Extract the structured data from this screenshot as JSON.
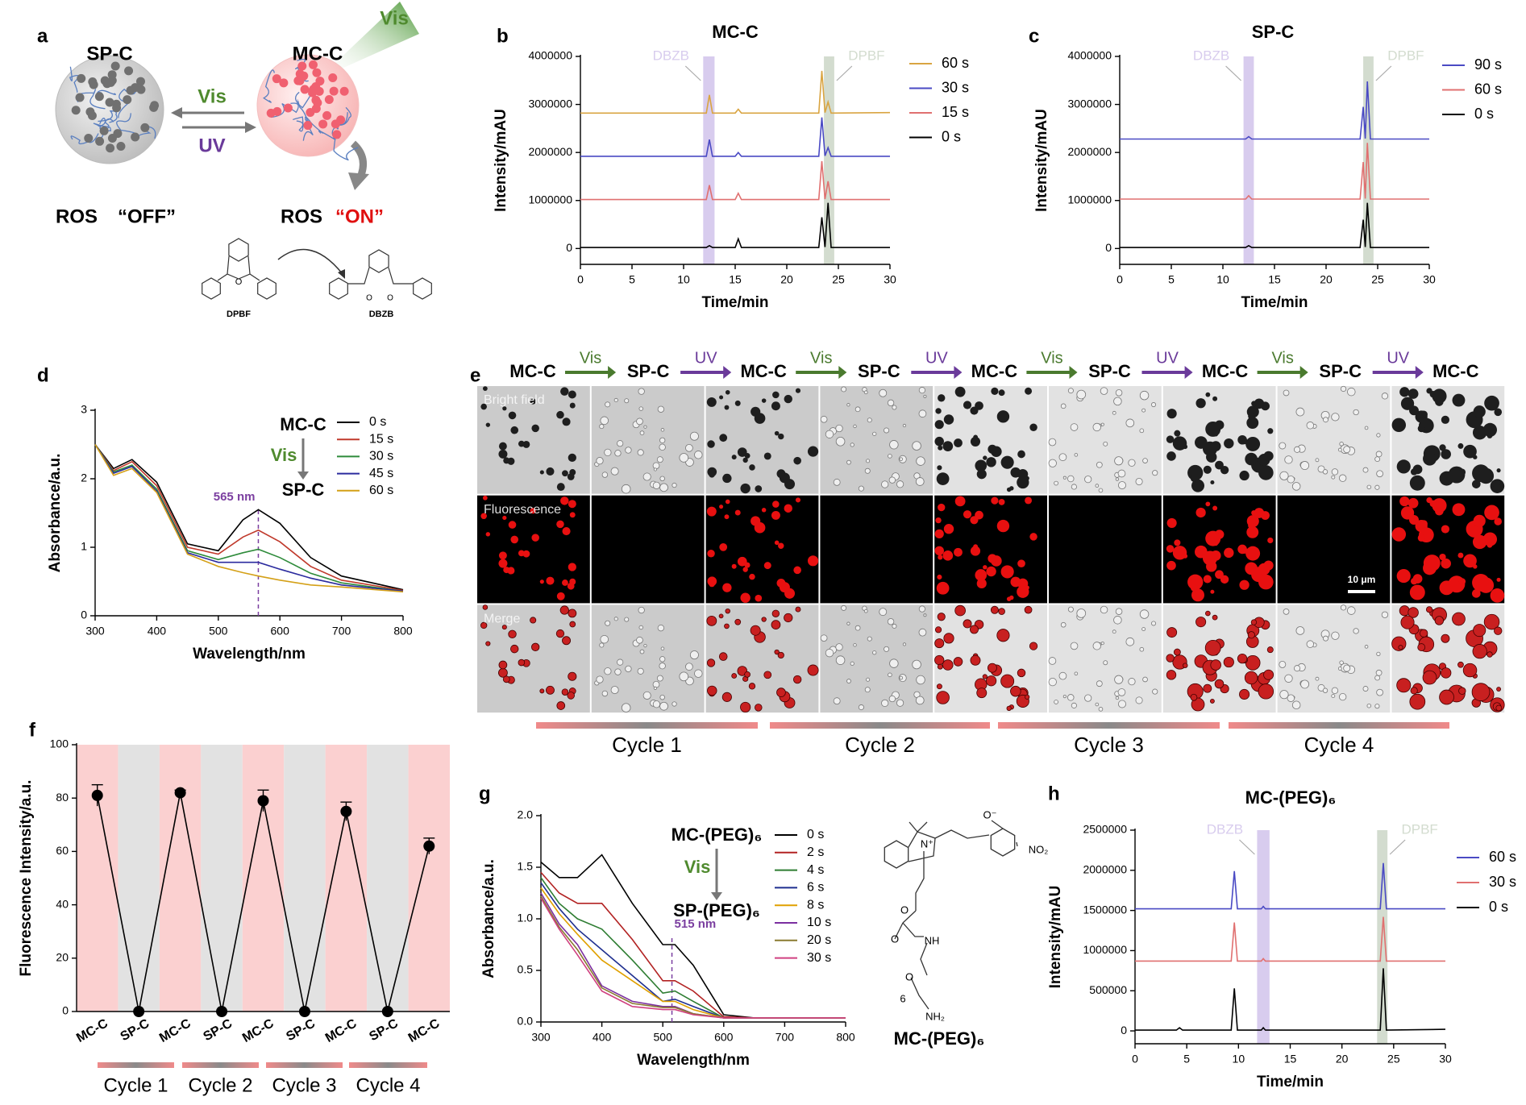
{
  "panels": [
    "a",
    "b",
    "c",
    "d",
    "e",
    "f",
    "g",
    "h"
  ],
  "scheme": {
    "left": "SP-C",
    "right": "MC-C",
    "light": "Vis",
    "forward": "Vis",
    "backward": "UV",
    "left_state": [
      "ROS",
      "“OFF”"
    ],
    "right_state": [
      "ROS",
      "“ON”"
    ],
    "reactant": "DPBF",
    "product": "DBZB",
    "atoms": [
      "O",
      "O",
      "O"
    ]
  },
  "chart_data": [
    {
      "type": "line",
      "title": "MC-C",
      "x_label": "Time/min",
      "y_label": "Intensity/mAU",
      "x": [
        0,
        12.2,
        12.5,
        12.8,
        15,
        15.3,
        15.6,
        23.1,
        23.4,
        23.7,
        24,
        24.3,
        30
      ],
      "series": [
        {
          "name": "60 s",
          "color": "#d9a441",
          "values": [
            2820000,
            2820000,
            3200000,
            2820000,
            2820000,
            2900000,
            2820000,
            2820000,
            3700000,
            2830000,
            3050000,
            2820000,
            2830000
          ]
        },
        {
          "name": "30 s",
          "color": "#4a4ac4",
          "values": [
            1920000,
            1920000,
            2270000,
            1920000,
            1920000,
            2000000,
            1920000,
            1920000,
            2730000,
            1930000,
            2100000,
            1920000,
            1920000
          ]
        },
        {
          "name": "15 s",
          "color": "#e07070",
          "values": [
            1020000,
            1020000,
            1320000,
            1020000,
            1020000,
            1150000,
            1020000,
            1020000,
            1820000,
            1030000,
            1400000,
            1020000,
            1020000
          ]
        },
        {
          "name": "0 s",
          "color": "#000000",
          "values": [
            20000,
            20000,
            60000,
            20000,
            20000,
            200000,
            20000,
            20000,
            650000,
            30000,
            950000,
            20000,
            20000
          ]
        }
      ],
      "bands": [
        {
          "label": "DBZB",
          "from": 11.9,
          "to": 13.0,
          "color": "#d8ccee"
        },
        {
          "label": "DPBF",
          "from": 23.6,
          "to": 24.6,
          "color": "#d3dccf"
        }
      ],
      "xlim": [
        0,
        30
      ],
      "xticks": [
        0,
        5,
        10,
        15,
        20,
        25,
        30
      ],
      "ylim": [
        -330000,
        4000000
      ],
      "yticks": [
        0,
        1000000,
        2000000,
        3000000,
        4000000
      ]
    },
    {
      "type": "line",
      "title": "SP-C",
      "x_label": "Time/min",
      "y_label": "Intensity/mAU",
      "x": [
        0,
        12.2,
        12.5,
        12.8,
        23.3,
        23.6,
        23.8,
        24.0,
        24.3,
        30
      ],
      "series": [
        {
          "name": "90 s",
          "color": "#4a4ac4",
          "values": [
            2280000,
            2280000,
            2330000,
            2280000,
            2280000,
            2950000,
            2290000,
            3480000,
            2280000,
            2280000
          ]
        },
        {
          "name": "60 s",
          "color": "#e07070",
          "values": [
            1030000,
            1030000,
            1100000,
            1030000,
            1030000,
            1800000,
            1040000,
            2200000,
            1030000,
            1030000
          ]
        },
        {
          "name": "0 s",
          "color": "#000000",
          "values": [
            20000,
            20000,
            60000,
            20000,
            20000,
            600000,
            30000,
            950000,
            20000,
            20000
          ]
        }
      ],
      "bands": [
        {
          "label": "DBZB",
          "from": 12.0,
          "to": 13.0,
          "color": "#d8ccee"
        },
        {
          "label": "DPBF",
          "from": 23.6,
          "to": 24.6,
          "color": "#d3dccf"
        }
      ],
      "xlim": [
        0,
        30
      ],
      "xticks": [
        0,
        5,
        10,
        15,
        20,
        25,
        30
      ],
      "ylim": [
        -330000,
        4000000
      ],
      "yticks": [
        0,
        1000000,
        2000000,
        3000000,
        4000000
      ]
    },
    {
      "type": "line",
      "x_label": "Wavelength/nm",
      "y_label": "Absorbance/a.u.",
      "x": [
        300,
        330,
        360,
        400,
        450,
        500,
        540,
        565,
        600,
        650,
        700,
        800
      ],
      "series": [
        {
          "name": "0 s",
          "color": "#000000",
          "values": [
            2.5,
            2.15,
            2.28,
            1.95,
            1.05,
            0.95,
            1.4,
            1.55,
            1.35,
            0.85,
            0.58,
            0.38
          ]
        },
        {
          "name": "15 s",
          "color": "#c0392b",
          "values": [
            2.5,
            2.12,
            2.25,
            1.9,
            1.0,
            0.9,
            1.15,
            1.25,
            1.08,
            0.72,
            0.52,
            0.37
          ]
        },
        {
          "name": "30 s",
          "color": "#2e8b3a",
          "values": [
            2.5,
            2.1,
            2.2,
            1.85,
            0.95,
            0.82,
            0.92,
            0.97,
            0.85,
            0.62,
            0.48,
            0.36
          ]
        },
        {
          "name": "45 s",
          "color": "#2b2b9e",
          "values": [
            2.5,
            2.08,
            2.18,
            1.82,
            0.92,
            0.78,
            0.78,
            0.78,
            0.68,
            0.55,
            0.45,
            0.36
          ]
        },
        {
          "name": "60 s",
          "color": "#d4a017",
          "values": [
            2.5,
            2.05,
            2.15,
            1.8,
            0.9,
            0.72,
            0.63,
            0.58,
            0.52,
            0.45,
            0.42,
            0.35
          ]
        }
      ],
      "marker": {
        "x": 565,
        "label": "565 nm",
        "color": "#7b3fa0"
      },
      "inset": {
        "top": "MC-C",
        "arrow": "Vis",
        "bottom": "SP-C"
      },
      "xlim": [
        300,
        800
      ],
      "xticks": [
        300,
        400,
        500,
        600,
        700,
        800
      ],
      "ylim": [
        0,
        3
      ],
      "yticks": [
        0,
        1,
        2,
        3
      ]
    },
    {
      "type": "line",
      "y_label": "Fluorescence Intensity/a.u.",
      "categories": [
        "MC-C",
        "SP-C",
        "MC-C",
        "SP-C",
        "MC-C",
        "SP-C",
        "MC-C",
        "SP-C",
        "MC-C"
      ],
      "values": [
        81,
        0,
        82,
        0,
        79,
        0,
        75,
        0,
        62
      ],
      "errors": [
        4,
        0,
        1,
        0,
        4,
        0,
        3.5,
        0,
        3
      ],
      "color": "#000000",
      "background": [
        "#fbd0d0",
        "#e2e2e2"
      ],
      "cycles": [
        "Cycle 1",
        "Cycle 2",
        "Cycle 3",
        "Cycle 4"
      ],
      "ylim": [
        0,
        100
      ],
      "yticks": [
        0,
        20,
        40,
        60,
        80,
        100
      ]
    },
    {
      "type": "line",
      "x_label": "Wavelength/nm",
      "y_label": "Absorbance/a.u.",
      "x": [
        300,
        330,
        360,
        400,
        450,
        500,
        520,
        550,
        600,
        650,
        800
      ],
      "series": [
        {
          "name": "0 s",
          "color": "#000000",
          "values": [
            1.55,
            1.4,
            1.4,
            1.62,
            1.15,
            0.75,
            0.75,
            0.55,
            0.07,
            0.04,
            0.04
          ]
        },
        {
          "name": "2 s",
          "color": "#b22222",
          "values": [
            1.45,
            1.25,
            1.15,
            1.15,
            0.8,
            0.4,
            0.4,
            0.3,
            0.05,
            0.04,
            0.04
          ]
        },
        {
          "name": "4 s",
          "color": "#2e7d32",
          "values": [
            1.4,
            1.15,
            1.0,
            0.9,
            0.6,
            0.28,
            0.3,
            0.2,
            0.04,
            0.04,
            0.04
          ]
        },
        {
          "name": "6 s",
          "color": "#1f2f8f",
          "values": [
            1.35,
            1.1,
            0.9,
            0.7,
            0.45,
            0.2,
            0.22,
            0.15,
            0.04,
            0.04,
            0.04
          ]
        },
        {
          "name": "8 s",
          "color": "#e0a000",
          "values": [
            1.3,
            1.05,
            0.85,
            0.6,
            0.4,
            0.2,
            0.2,
            0.12,
            0.04,
            0.04,
            0.04
          ]
        },
        {
          "name": "10 s",
          "color": "#7b2fa0",
          "values": [
            1.25,
            0.95,
            0.75,
            0.35,
            0.2,
            0.15,
            0.15,
            0.08,
            0.04,
            0.04,
            0.04
          ]
        },
        {
          "name": "20 s",
          "color": "#8a7a30",
          "values": [
            1.22,
            0.92,
            0.7,
            0.33,
            0.18,
            0.14,
            0.14,
            0.08,
            0.04,
            0.04,
            0.04
          ]
        },
        {
          "name": "30 s",
          "color": "#d04080",
          "values": [
            1.2,
            0.9,
            0.65,
            0.3,
            0.15,
            0.12,
            0.12,
            0.07,
            0.04,
            0.04,
            0.04
          ]
        }
      ],
      "marker": {
        "x": 515,
        "label": "515 nm",
        "color": "#7b3fa0"
      },
      "inset": {
        "top": "MC-(PEG)₆",
        "arrow": "Vis",
        "bottom": "SP-(PEG)₆"
      },
      "xlim": [
        300,
        800
      ],
      "xticks": [
        300,
        400,
        500,
        600,
        700,
        800
      ],
      "ylim": [
        0,
        2
      ],
      "yticks": [
        {
          "value": 0,
          "label": "0.0"
        },
        0.5,
        {
          "value": 1,
          "label": "1.0"
        },
        1.5,
        {
          "value": 2,
          "label": "2.0"
        }
      ]
    },
    {
      "type": "line",
      "title": "MC-(PEG)₆",
      "x_label": "Time/min",
      "y_label": "Intensity/mAU",
      "x": [
        0,
        4.0,
        4.3,
        4.6,
        9.3,
        9.6,
        9.9,
        12.2,
        12.4,
        12.6,
        23.7,
        24.0,
        24.3,
        30
      ],
      "series": [
        {
          "name": "60 s",
          "color": "#4a4ac4",
          "values": [
            1520000,
            1520000,
            1520000,
            1520000,
            1520000,
            1990000,
            1520000,
            1520000,
            1550000,
            1520000,
            1520000,
            2090000,
            1520000,
            1520000
          ]
        },
        {
          "name": "30 s",
          "color": "#e07070",
          "values": [
            870000,
            870000,
            870000,
            870000,
            870000,
            1350000,
            870000,
            870000,
            900000,
            870000,
            870000,
            1420000,
            870000,
            870000
          ]
        },
        {
          "name": "0 s",
          "color": "#000000",
          "values": [
            10000,
            10000,
            40000,
            10000,
            10000,
            530000,
            10000,
            10000,
            40000,
            10000,
            10000,
            780000,
            10000,
            20000
          ]
        }
      ],
      "bands": [
        {
          "label": "DBZB",
          "from": 11.8,
          "to": 13.0,
          "color": "#d8ccee"
        },
        {
          "label": "DPBF",
          "from": 23.4,
          "to": 24.4,
          "color": "#d3dccf"
        }
      ],
      "xlim": [
        0,
        30
      ],
      "xticks": [
        0,
        5,
        10,
        15,
        20,
        25,
        30
      ],
      "ylim": [
        -160000,
        2500000
      ],
      "yticks": [
        0,
        500000,
        1000000,
        1500000,
        2000000,
        2500000
      ]
    }
  ],
  "micrographs": {
    "sequence": [
      "MC-C",
      "SP-C",
      "MC-C",
      "SP-C",
      "MC-C",
      "SP-C",
      "MC-C",
      "SP-C",
      "MC-C"
    ],
    "arrows": [
      "Vis",
      "UV",
      "Vis",
      "UV",
      "Vis",
      "UV",
      "Vis",
      "UV"
    ],
    "arrow_colors": {
      "Vis": "#4a7a2e",
      "UV": "#6a3a9a"
    },
    "rows": [
      "Bright field",
      "Fluorescence",
      "Merge"
    ],
    "scale_bar": "10 μm",
    "cycles": [
      "Cycle 1",
      "Cycle 2",
      "Cycle 3",
      "Cycle 4"
    ]
  },
  "structure": {
    "label": "MC-(PEG)₆",
    "atoms": [
      "O⁻",
      "NO₂",
      "N⁺",
      "O",
      "O",
      "NH",
      "O",
      "6",
      "NH₂"
    ]
  }
}
